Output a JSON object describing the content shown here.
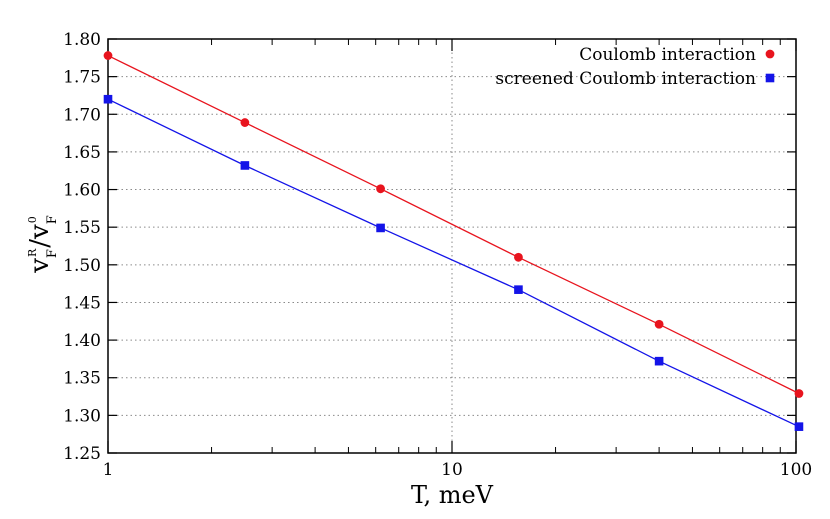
{
  "chart_data": {
    "type": "line",
    "x_scale": "log",
    "xlim": [
      1,
      100
    ],
    "ylim": [
      1.25,
      1.8
    ],
    "xlabel": "T, meV",
    "ylabel": {
      "base": "v",
      "sub": "F",
      "sup_num": "R",
      "sup_den": "0"
    },
    "x_ticks": [
      1,
      10,
      100
    ],
    "x_tick_labels": [
      "1",
      "10",
      "100"
    ],
    "y_ticks": [
      1.25,
      1.3,
      1.35,
      1.4,
      1.45,
      1.5,
      1.55,
      1.6,
      1.65,
      1.7,
      1.75,
      1.8
    ],
    "y_tick_labels": [
      "1.25",
      "1.30",
      "1.35",
      "1.40",
      "1.45",
      "1.50",
      "1.55",
      "1.60",
      "1.65",
      "1.70",
      "1.75",
      "1.80"
    ],
    "grid": true,
    "legend_position": "top-right",
    "series": [
      {
        "name": "Coulomb interaction",
        "color": "#e8141e",
        "marker": "circle",
        "points": [
          {
            "x": 1,
            "y": 1.778
          },
          {
            "x": 2.5,
            "y": 1.689
          },
          {
            "x": 6.2,
            "y": 1.601
          },
          {
            "x": 15.6,
            "y": 1.51
          },
          {
            "x": 40,
            "y": 1.421
          },
          {
            "x": 102,
            "y": 1.329
          }
        ]
      },
      {
        "name": "screened Coulomb interaction",
        "color": "#1414e8",
        "marker": "square",
        "points": [
          {
            "x": 1,
            "y": 1.72
          },
          {
            "x": 2.5,
            "y": 1.632
          },
          {
            "x": 6.2,
            "y": 1.549
          },
          {
            "x": 15.6,
            "y": 1.467
          },
          {
            "x": 40,
            "y": 1.372
          },
          {
            "x": 102,
            "y": 1.285
          }
        ]
      }
    ]
  }
}
